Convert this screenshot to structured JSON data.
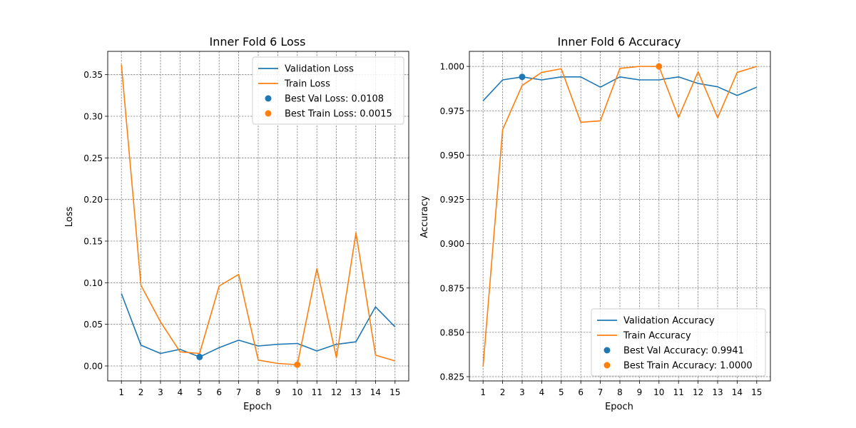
{
  "chart_data": [
    {
      "type": "line",
      "title": "Inner Fold 6 Loss",
      "xlabel": "Epoch",
      "ylabel": "Loss",
      "x": [
        1,
        2,
        3,
        4,
        5,
        6,
        7,
        8,
        9,
        10,
        11,
        12,
        13,
        14,
        15
      ],
      "xticks": [
        "1",
        "2",
        "3",
        "4",
        "5",
        "6",
        "7",
        "8",
        "9",
        "10",
        "11",
        "12",
        "13",
        "14",
        "15"
      ],
      "xlim": [
        0.3,
        15.7
      ],
      "ylim": [
        -0.018,
        0.378
      ],
      "yticks": [
        0.0,
        0.05,
        0.1,
        0.15,
        0.2,
        0.25,
        0.3,
        0.35
      ],
      "ytick_labels": [
        "0.00",
        "0.05",
        "0.10",
        "0.15",
        "0.20",
        "0.25",
        "0.30",
        "0.35"
      ],
      "grid": true,
      "legend_position": "top-right",
      "series": [
        {
          "name": "Validation Loss",
          "color": "#1f77b4",
          "values": [
            0.087,
            0.025,
            0.015,
            0.02,
            0.0108,
            0.022,
            0.031,
            0.024,
            0.026,
            0.027,
            0.018,
            0.026,
            0.029,
            0.071,
            0.047
          ]
        },
        {
          "name": "Train Loss",
          "color": "#ff7f0e",
          "values": [
            0.362,
            0.097,
            0.053,
            0.017,
            0.015,
            0.096,
            0.11,
            0.007,
            0.003,
            0.0015,
            0.117,
            0.01,
            0.16,
            0.013,
            0.006
          ]
        }
      ],
      "markers": [
        {
          "label": "Best Val Loss: 0.0108",
          "x": 5,
          "y": 0.0108,
          "color": "#1f77b4"
        },
        {
          "label": "Best Train Loss: 0.0015",
          "x": 10,
          "y": 0.0015,
          "color": "#ff7f0e"
        }
      ]
    },
    {
      "type": "line",
      "title": "Inner Fold 6 Accuracy",
      "xlabel": "Epoch",
      "ylabel": "Accuracy",
      "x": [
        1,
        2,
        3,
        4,
        5,
        6,
        7,
        8,
        9,
        10,
        11,
        12,
        13,
        14,
        15
      ],
      "xticks": [
        "1",
        "2",
        "3",
        "4",
        "5",
        "6",
        "7",
        "8",
        "9",
        "10",
        "11",
        "12",
        "13",
        "14",
        "15"
      ],
      "xlim": [
        0.3,
        15.7
      ],
      "ylim": [
        0.8226,
        1.0085
      ],
      "yticks": [
        0.825,
        0.85,
        0.875,
        0.9,
        0.925,
        0.95,
        0.975,
        1.0
      ],
      "ytick_labels": [
        "0.825",
        "0.850",
        "0.875",
        "0.900",
        "0.925",
        "0.950",
        "0.975",
        "1.000"
      ],
      "grid": true,
      "legend_position": "bottom-right",
      "series": [
        {
          "name": "Validation Accuracy",
          "color": "#1f77b4",
          "values": [
            0.9806,
            0.9924,
            0.9941,
            0.9924,
            0.9941,
            0.9941,
            0.9883,
            0.9941,
            0.9924,
            0.9924,
            0.9941,
            0.9904,
            0.9885,
            0.9836,
            0.9883
          ]
        },
        {
          "name": "Train Accuracy",
          "color": "#ff7f0e",
          "values": [
            0.8307,
            0.9643,
            0.9893,
            0.9966,
            0.9987,
            0.9685,
            0.9693,
            0.9989,
            1.0,
            1.0,
            0.9712,
            0.997,
            0.971,
            0.9966,
            1.0
          ]
        }
      ],
      "markers": [
        {
          "label": "Best Val Accuracy: 0.9941",
          "x": 3,
          "y": 0.9941,
          "color": "#1f77b4"
        },
        {
          "label": "Best Train Accuracy: 1.0000",
          "x": 10,
          "y": 1.0,
          "color": "#ff7f0e"
        }
      ]
    }
  ]
}
